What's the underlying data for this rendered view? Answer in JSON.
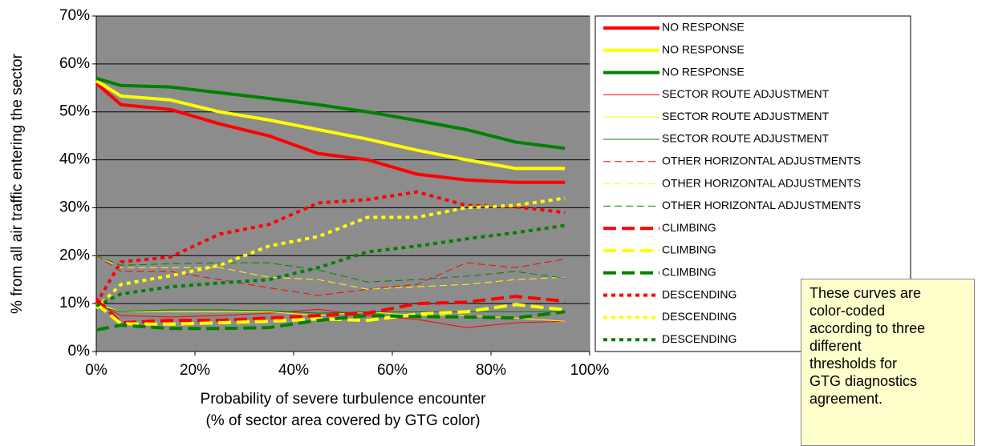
{
  "chart_data": {
    "type": "line",
    "y_label": "% from all air traffic entering the sector",
    "x_label": [
      "Probability of severe turbulence encounter",
      "(% of sector area covered by GTG color)"
    ],
    "x": [
      0,
      5,
      15,
      25,
      35,
      45,
      55,
      65,
      75,
      85,
      95
    ],
    "xlim": [
      0,
      100
    ],
    "xticks": [
      {
        "value": 0,
        "label": "0%"
      },
      {
        "value": 20,
        "label": "20%"
      },
      {
        "value": 40,
        "label": "40%"
      },
      {
        "value": 60,
        "label": "60%"
      },
      {
        "value": 80,
        "label": "80%"
      },
      {
        "value": 100,
        "label": "100%"
      }
    ],
    "ylim": [
      0,
      70
    ],
    "yticks": [
      {
        "value": 0,
        "label": "0%"
      },
      {
        "value": 10,
        "label": "10%"
      },
      {
        "value": 20,
        "label": "20%"
      },
      {
        "value": 30,
        "label": "30%"
      },
      {
        "value": 40,
        "label": "40%"
      },
      {
        "value": 50,
        "label": "50%"
      },
      {
        "value": 60,
        "label": "60%"
      },
      {
        "value": 70,
        "label": "70%"
      }
    ],
    "grid": true,
    "legend": "right",
    "series": [
      {
        "name": "NO RESPONSE",
        "color": "#ff0000",
        "line_width": "thick",
        "line_style": "solid",
        "values": [
          56,
          51.5,
          50.5,
          47.5,
          45,
          41.3,
          40,
          37,
          35.8,
          35.3,
          35.3
        ]
      },
      {
        "name": "NO RESPONSE",
        "color": "#ffff00",
        "line_width": "thick",
        "line_style": "solid",
        "values": [
          56.5,
          53.3,
          52.5,
          50,
          48.3,
          46.3,
          44.3,
          42,
          40,
          38.2,
          38.2
        ]
      },
      {
        "name": "NO RESPONSE",
        "color": "#008000",
        "line_width": "thick",
        "line_style": "solid",
        "values": [
          57,
          55.5,
          55.2,
          54,
          52.8,
          51.5,
          50,
          48.2,
          46.3,
          43.7,
          42.4
        ]
      },
      {
        "name": "SECTOR ROUTE ADJUSTMENT",
        "color": "#ff0000",
        "line_width": "thin",
        "line_style": "solid",
        "values": [
          10,
          7.5,
          7.2,
          7.5,
          8,
          8.8,
          7.5,
          6.7,
          5,
          6,
          6.3
        ]
      },
      {
        "name": "SECTOR ROUTE ADJUSTMENT",
        "color": "#ffff00",
        "line_width": "thin",
        "line_style": "solid",
        "values": [
          10,
          8.3,
          8.3,
          8.3,
          8.3,
          7.5,
          8.3,
          7.5,
          7.5,
          7,
          6.3
        ]
      },
      {
        "name": "SECTOR ROUTE ADJUSTMENT",
        "color": "#008000",
        "line_width": "thin",
        "line_style": "solid",
        "values": [
          9.5,
          8.3,
          8.7,
          8.7,
          8.5,
          8,
          8.3,
          8.3,
          8.3,
          8.3,
          8.3
        ]
      },
      {
        "name": "OTHER HORIZONTAL ADJUSTMENTS",
        "color": "#ff0000",
        "line_width": "thin",
        "line_style": "dashed",
        "values": [
          20,
          16.7,
          16.7,
          15,
          13.3,
          11.7,
          13,
          14,
          18.5,
          17.5,
          19.3
        ]
      },
      {
        "name": "OTHER HORIZONTAL ADJUSTMENTS",
        "color": "#ffff00",
        "line_width": "thin",
        "line_style": "dashed",
        "values": [
          20,
          17.5,
          17.5,
          17.5,
          15.5,
          15,
          13,
          13.5,
          14,
          15,
          15.5
        ]
      },
      {
        "name": "OTHER HORIZONTAL ADJUSTMENTS",
        "color": "#008000",
        "line_width": "thin",
        "line_style": "dashed",
        "values": [
          20,
          18,
          18.3,
          18.5,
          18.5,
          17,
          14.5,
          15,
          15.7,
          16.7,
          15.3
        ]
      },
      {
        "name": "CLIMBING",
        "color": "#ff0000",
        "line_width": "thick",
        "line_style": "dashed",
        "values": [
          11,
          6,
          6.5,
          6.5,
          7,
          7.5,
          8,
          10,
          10.3,
          11.5,
          10.5
        ]
      },
      {
        "name": "CLIMBING",
        "color": "#ffff00",
        "line_width": "thick",
        "line_style": "dashed",
        "values": [
          10,
          5.8,
          5.7,
          6,
          6.3,
          6.8,
          6.5,
          7.8,
          8.3,
          9.8,
          8.7
        ]
      },
      {
        "name": "CLIMBING",
        "color": "#008000",
        "line_width": "thick",
        "line_style": "dashed",
        "values": [
          4.5,
          5.5,
          4.8,
          4.8,
          5,
          6.5,
          7.5,
          7.3,
          7.2,
          7,
          8.3
        ]
      },
      {
        "name": "DESCENDING",
        "color": "#ff0000",
        "line_width": "thick",
        "line_style": "dotted",
        "values": [
          10,
          18.7,
          19.7,
          24.5,
          26.5,
          31,
          31.7,
          33.3,
          30.5,
          30.2,
          29
        ]
      },
      {
        "name": "DESCENDING",
        "color": "#ffff00",
        "line_width": "thick",
        "line_style": "dotted",
        "values": [
          9,
          14,
          15.8,
          18,
          22,
          24,
          28,
          28,
          30,
          30.5,
          32
        ]
      },
      {
        "name": "DESCENDING",
        "color": "#008000",
        "line_width": "thick",
        "line_style": "dotted",
        "values": [
          9.5,
          12,
          13.5,
          14.3,
          15,
          17.5,
          20.8,
          22,
          23.5,
          24.8,
          26.3
        ]
      }
    ],
    "annotation": "These curves are color-coded according to three different thresholds for GTG diagnostics agreement."
  }
}
